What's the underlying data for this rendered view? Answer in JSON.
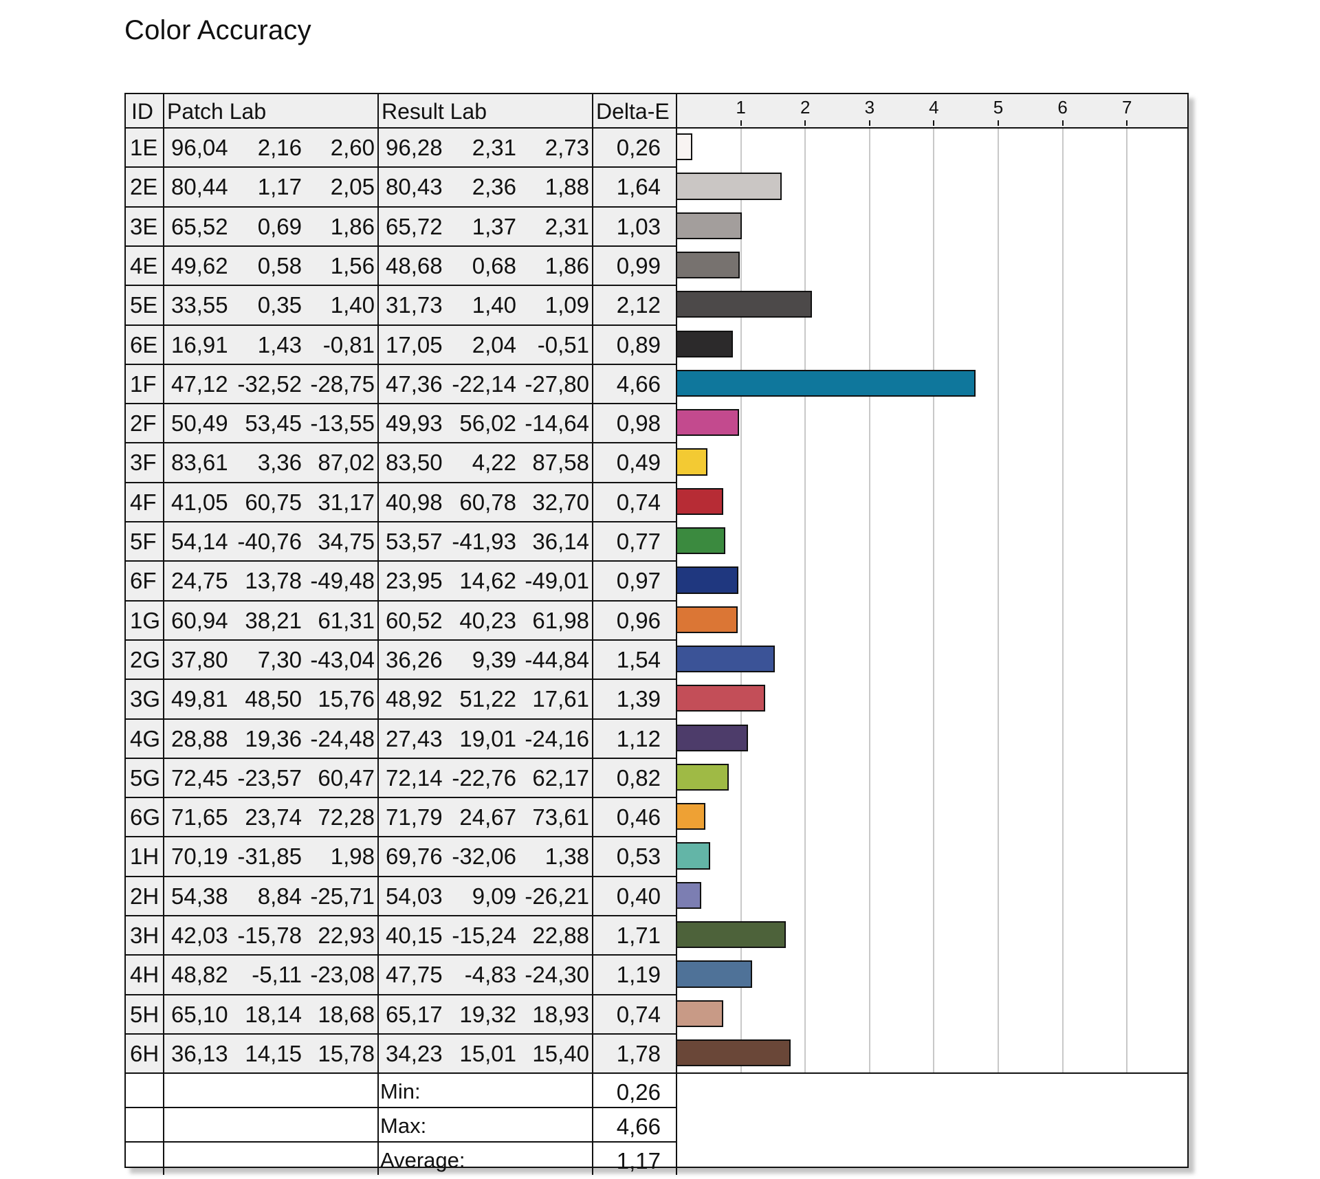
{
  "title": "Color Accuracy",
  "headers": {
    "id": "ID",
    "patch": "Patch Lab",
    "result": "Result Lab",
    "delta": "Delta-E"
  },
  "chart_data": {
    "type": "bar",
    "orientation": "horizontal",
    "title": "Color Accuracy",
    "xlim": [
      0,
      8
    ],
    "ticks": [
      1,
      2,
      3,
      4,
      5,
      6,
      7
    ],
    "grid": true,
    "rows": [
      {
        "id": "1E",
        "patch": [
          "96,04",
          "2,16",
          "2,60"
        ],
        "result": [
          "96,28",
          "2,31",
          "2,73"
        ],
        "delta": "0,26",
        "value": 0.26,
        "color": "#f8f4f2"
      },
      {
        "id": "2E",
        "patch": [
          "80,44",
          "1,17",
          "2,05"
        ],
        "result": [
          "80,43",
          "2,36",
          "1,88"
        ],
        "delta": "1,64",
        "value": 1.64,
        "color": "#cac6c4"
      },
      {
        "id": "3E",
        "patch": [
          "65,52",
          "0,69",
          "1,86"
        ],
        "result": [
          "65,72",
          "1,37",
          "2,31"
        ],
        "delta": "1,03",
        "value": 1.03,
        "color": "#a39e9c"
      },
      {
        "id": "4E",
        "patch": [
          "49,62",
          "0,58",
          "1,56"
        ],
        "result": [
          "48,68",
          "0,68",
          "1,86"
        ],
        "delta": "0,99",
        "value": 0.99,
        "color": "#77726f"
      },
      {
        "id": "5E",
        "patch": [
          "33,55",
          "0,35",
          "1,40"
        ],
        "result": [
          "31,73",
          "1,40",
          "1,09"
        ],
        "delta": "2,12",
        "value": 2.12,
        "color": "#4c4949"
      },
      {
        "id": "6E",
        "patch": [
          "16,91",
          "1,43",
          "-0,81"
        ],
        "result": [
          "17,05",
          "2,04",
          "-0,51"
        ],
        "delta": "0,89",
        "value": 0.89,
        "color": "#2c2a2b"
      },
      {
        "id": "1F",
        "patch": [
          "47,12",
          "-32,52",
          "-28,75"
        ],
        "result": [
          "47,36",
          "-22,14",
          "-27,80"
        ],
        "delta": "4,66",
        "value": 4.66,
        "color": "#0f779c"
      },
      {
        "id": "2F",
        "patch": [
          "50,49",
          "53,45",
          "-13,55"
        ],
        "result": [
          "49,93",
          "56,02",
          "-14,64"
        ],
        "delta": "0,98",
        "value": 0.98,
        "color": "#c34a8e"
      },
      {
        "id": "3F",
        "patch": [
          "83,61",
          "3,36",
          "87,02"
        ],
        "result": [
          "83,50",
          "4,22",
          "87,58"
        ],
        "delta": "0,49",
        "value": 0.49,
        "color": "#f3ca33"
      },
      {
        "id": "4F",
        "patch": [
          "41,05",
          "60,75",
          "31,17"
        ],
        "result": [
          "40,98",
          "60,78",
          "32,70"
        ],
        "delta": "0,74",
        "value": 0.74,
        "color": "#b72c35"
      },
      {
        "id": "5F",
        "patch": [
          "54,14",
          "-40,76",
          "34,75"
        ],
        "result": [
          "53,57",
          "-41,93",
          "36,14"
        ],
        "delta": "0,77",
        "value": 0.77,
        "color": "#3b8a3f"
      },
      {
        "id": "6F",
        "patch": [
          "24,75",
          "13,78",
          "-49,48"
        ],
        "result": [
          "23,95",
          "14,62",
          "-49,01"
        ],
        "delta": "0,97",
        "value": 0.97,
        "color": "#1f377f"
      },
      {
        "id": "1G",
        "patch": [
          "60,94",
          "38,21",
          "61,31"
        ],
        "result": [
          "60,52",
          "40,23",
          "61,98"
        ],
        "delta": "0,96",
        "value": 0.96,
        "color": "#db7635"
      },
      {
        "id": "2G",
        "patch": [
          "37,80",
          "7,30",
          "-43,04"
        ],
        "result": [
          "36,26",
          "9,39",
          "-44,84"
        ],
        "delta": "1,54",
        "value": 1.54,
        "color": "#3b5397"
      },
      {
        "id": "3G",
        "patch": [
          "49,81",
          "48,50",
          "15,76"
        ],
        "result": [
          "48,92",
          "51,22",
          "17,61"
        ],
        "delta": "1,39",
        "value": 1.39,
        "color": "#c34e58"
      },
      {
        "id": "4G",
        "patch": [
          "28,88",
          "19,36",
          "-24,48"
        ],
        "result": [
          "27,43",
          "19,01",
          "-24,16"
        ],
        "delta": "1,12",
        "value": 1.12,
        "color": "#4d3c6a"
      },
      {
        "id": "5G",
        "patch": [
          "72,45",
          "-23,57",
          "60,47"
        ],
        "result": [
          "72,14",
          "-22,76",
          "62,17"
        ],
        "delta": "0,82",
        "value": 0.82,
        "color": "#9fba45"
      },
      {
        "id": "6G",
        "patch": [
          "71,65",
          "23,74",
          "72,28"
        ],
        "result": [
          "71,79",
          "24,67",
          "73,61"
        ],
        "delta": "0,46",
        "value": 0.46,
        "color": "#eea134"
      },
      {
        "id": "1H",
        "patch": [
          "70,19",
          "-31,85",
          "1,98"
        ],
        "result": [
          "69,76",
          "-32,06",
          "1,38"
        ],
        "delta": "0,53",
        "value": 0.53,
        "color": "#63b5a7"
      },
      {
        "id": "2H",
        "patch": [
          "54,38",
          "8,84",
          "-25,71"
        ],
        "result": [
          "54,03",
          "9,09",
          "-26,21"
        ],
        "delta": "0,40",
        "value": 0.4,
        "color": "#7c7eb2"
      },
      {
        "id": "3H",
        "patch": [
          "42,03",
          "-15,78",
          "22,93"
        ],
        "result": [
          "40,15",
          "-15,24",
          "22,88"
        ],
        "delta": "1,71",
        "value": 1.71,
        "color": "#4d623a"
      },
      {
        "id": "4H",
        "patch": [
          "48,82",
          "-5,11",
          "-23,08"
        ],
        "result": [
          "47,75",
          "-4,83",
          "-24,30"
        ],
        "delta": "1,19",
        "value": 1.19,
        "color": "#4f7298"
      },
      {
        "id": "5H",
        "patch": [
          "65,10",
          "18,14",
          "18,68"
        ],
        "result": [
          "65,17",
          "19,32",
          "18,93"
        ],
        "delta": "0,74",
        "value": 0.74,
        "color": "#c89a86"
      },
      {
        "id": "6H",
        "patch": [
          "36,13",
          "14,15",
          "15,78"
        ],
        "result": [
          "34,23",
          "15,01",
          "15,40"
        ],
        "delta": "1,78",
        "value": 1.78,
        "color": "#6a4738"
      }
    ]
  },
  "summary": [
    {
      "label": "Min:",
      "value": "0,26"
    },
    {
      "label": "Max:",
      "value": "4,66"
    },
    {
      "label": "Average:",
      "value": "1,17"
    }
  ]
}
